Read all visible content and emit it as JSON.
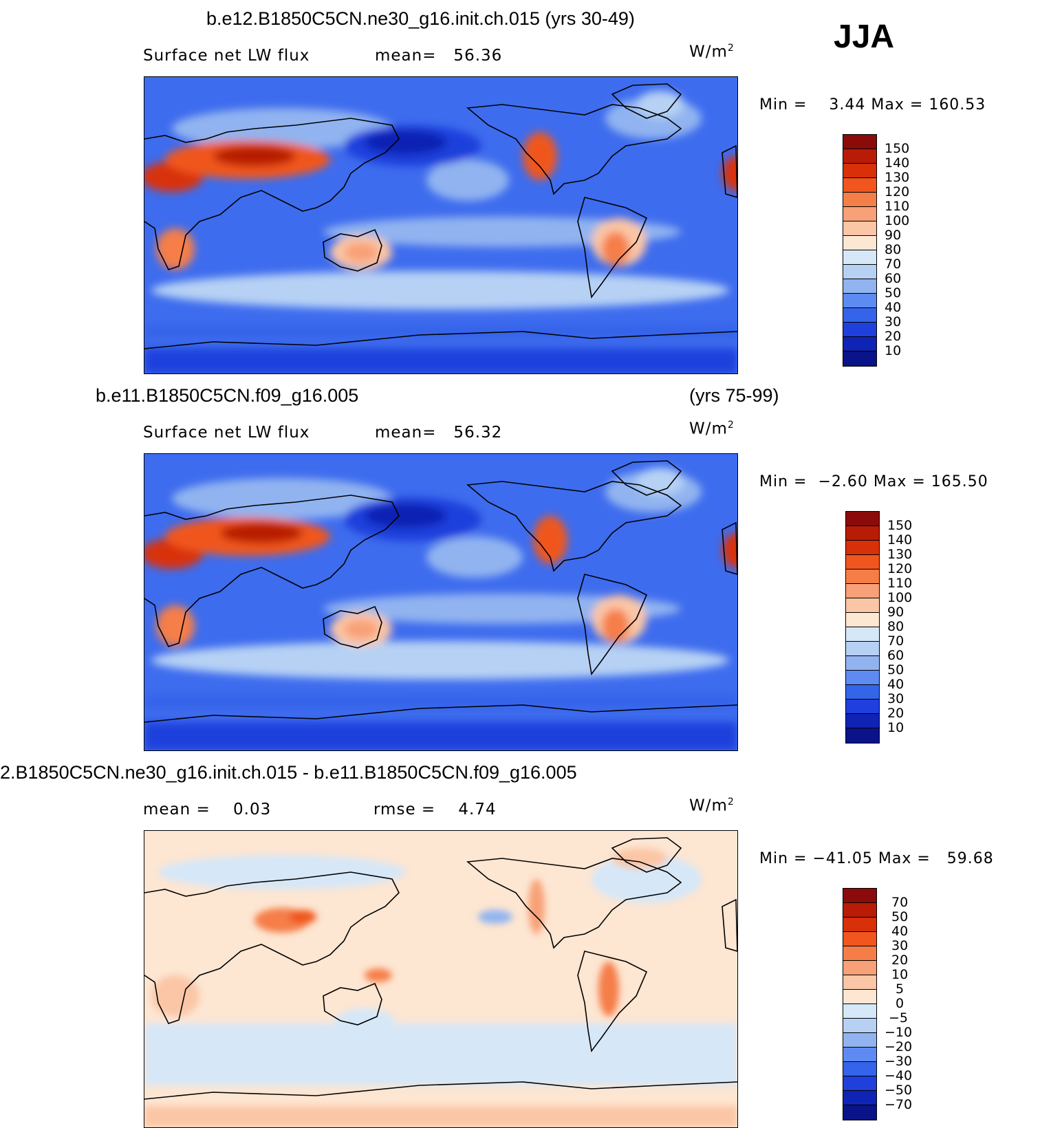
{
  "season": "JJA",
  "panels": [
    {
      "title": "b.e12.B1850C5CN.ne30_g16.init.ch.015 (yrs 30-49)",
      "title2": "",
      "left_text": "Surface net LW flux",
      "mid_text": "mean=   56.36",
      "unit": "W/m",
      "unit_sup": "2",
      "minmax": "Min =    3.44 Max = 160.53",
      "colorbar_labels": [
        "150",
        "140",
        "130",
        "120",
        "110",
        "100",
        "90",
        "80",
        "70",
        "60",
        "50",
        "40",
        "30",
        "20",
        "10"
      ],
      "colors": [
        "#8b0a0a",
        "#b81c06",
        "#d83008",
        "#f0561e",
        "#f57e48",
        "#f8a077",
        "#fbc6a6",
        "#fde6d2",
        "#d6e7f8",
        "#b6d1f4",
        "#91b4f0",
        "#5e8bf2",
        "#3464ea",
        "#1f40dc",
        "#0f24b4",
        "#0a1488"
      ]
    },
    {
      "title": "b.e11.B1850C5CN.f09_g16.005",
      "title2": "(yrs 75-99)",
      "left_text": "Surface net LW flux",
      "mid_text": "mean=   56.32",
      "unit": "W/m",
      "unit_sup": "2",
      "minmax": "Min =  −2.60 Max = 165.50",
      "colorbar_labels": [
        "150",
        "140",
        "130",
        "120",
        "110",
        "100",
        "90",
        "80",
        "70",
        "60",
        "50",
        "40",
        "30",
        "20",
        "10"
      ],
      "colors": [
        "#8b0a0a",
        "#b81c06",
        "#d83008",
        "#f0561e",
        "#f57e48",
        "#f8a077",
        "#fbc6a6",
        "#fde6d2",
        "#d6e7f8",
        "#b6d1f4",
        "#91b4f0",
        "#5e8bf2",
        "#3464ea",
        "#1f40dc",
        "#0f24b4",
        "#0a1488"
      ]
    },
    {
      "title": "2.B1850C5CN.ne30_g16.init.ch.015 - b.e11.B1850C5CN.f09_g16.005",
      "title2": "",
      "left_text": "mean =    0.03",
      "mid_text": "rmse =    4.74",
      "unit": "W/m",
      "unit_sup": "2",
      "minmax": "Min = −41.05 Max =   59.68",
      "colorbar_labels": [
        "70",
        "50",
        "40",
        "30",
        "20",
        "10",
        "5",
        "0",
        "−5",
        "−10",
        "−20",
        "−30",
        "−40",
        "−50",
        "−70"
      ],
      "colors": [
        "#8b0a0a",
        "#b81c06",
        "#d83008",
        "#f0561e",
        "#f57e48",
        "#f8a077",
        "#fbc6a6",
        "#fde6d2",
        "#d6e7f8",
        "#b6d1f4",
        "#91b4f0",
        "#5e8bf2",
        "#3464ea",
        "#1f40dc",
        "#0f24b4",
        "#0a1488"
      ]
    }
  ]
}
